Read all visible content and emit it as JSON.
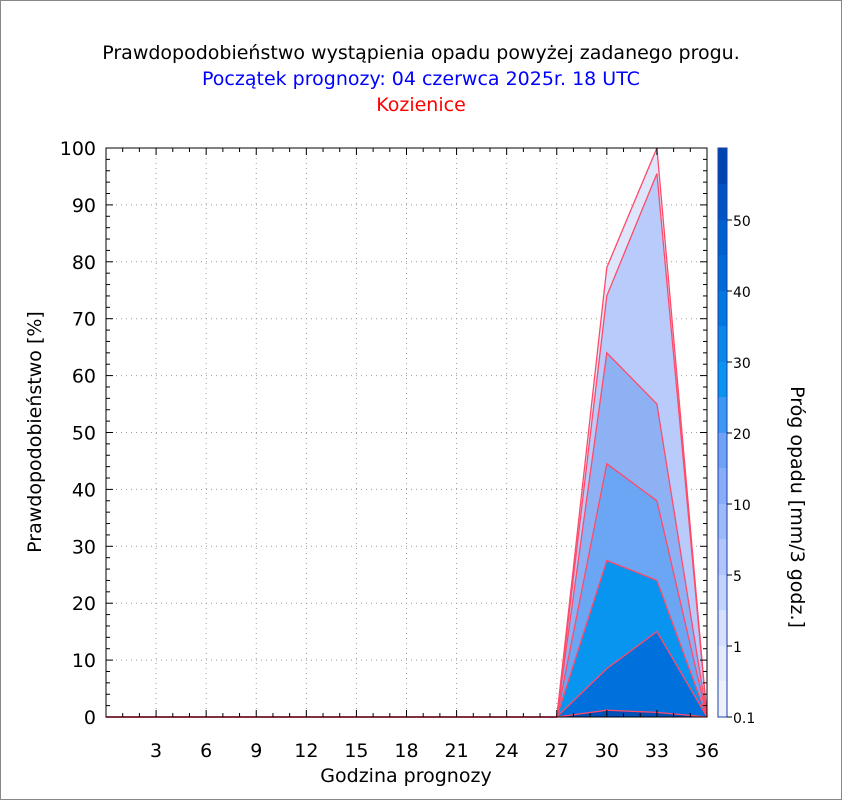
{
  "chart_data": {
    "type": "area",
    "title": "Prawdopodobieństwo wystąpienia opadu powyżej zadanego progu.",
    "subtitle": "Początek prognozy: 04 czerwca 2025r. 18 UTC",
    "location": "Kozienice",
    "xlabel": "Godzina prognozy",
    "ylabel": "Prawdopodobieństwo [%]",
    "xlim": [
      0,
      36
    ],
    "ylim": [
      0,
      100
    ],
    "x_ticks": [
      "3",
      "6",
      "9",
      "12",
      "15",
      "18",
      "21",
      "24",
      "27",
      "30",
      "33",
      "36"
    ],
    "y_ticks": [
      "0",
      "10",
      "20",
      "30",
      "40",
      "50",
      "60",
      "70",
      "80",
      "90",
      "100"
    ],
    "x": [
      0,
      27,
      30,
      33,
      36
    ],
    "series": [
      {
        "threshold": 0.1,
        "values": [
          0,
          0,
          79,
          100,
          0
        ],
        "color": "#dfe6fb"
      },
      {
        "threshold": 1,
        "values": [
          0,
          0,
          74,
          95.5,
          0
        ],
        "color": "#b9cbfb"
      },
      {
        "threshold": 5,
        "values": [
          0,
          0,
          64,
          55,
          0
        ],
        "color": "#8eb1f4"
      },
      {
        "threshold": 10,
        "values": [
          0,
          0,
          44.5,
          38,
          0
        ],
        "color": "#6aa6f3"
      },
      {
        "threshold": 20,
        "values": [
          0,
          0,
          27.5,
          24,
          0
        ],
        "color": "#0895f0"
      },
      {
        "threshold": 30,
        "values": [
          0,
          0,
          8.5,
          15,
          0
        ],
        "color": "#0070dc"
      },
      {
        "threshold": 40,
        "values": [
          0,
          0,
          1.2,
          0.8,
          0
        ],
        "color": "#0050b8"
      }
    ],
    "line_color": "#ff4a6a",
    "grid": "dotted",
    "colorbar": {
      "label": "Próg opadu [mm/3 godz.]",
      "tick_labels": [
        "0.1",
        "1",
        "5",
        "10",
        "20",
        "30",
        "40",
        "50"
      ],
      "colors": [
        "#eef1fd",
        "#dfe6fb",
        "#b9cbfb",
        "#8eb1f4",
        "#5f9ff3",
        "#0895f0",
        "#0076e0",
        "#0066d4",
        "#0056c4",
        "#0040a8"
      ]
    }
  }
}
